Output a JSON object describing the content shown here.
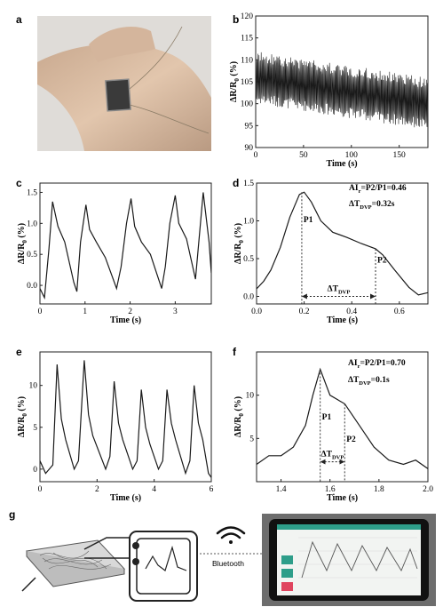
{
  "panels": {
    "a": "a",
    "b": "b",
    "c": "c",
    "d": "d",
    "e": "e",
    "f": "f",
    "g": "g"
  },
  "annotations": {
    "d_ai": "AIr=P2/P1=0.46",
    "d_dt": "ΔTDVP=0.32s",
    "f_ai": "AIr=P2/P1=0.70",
    "f_dt": "ΔTDVP=0.1s",
    "p1": "P1",
    "p2": "P2",
    "dtvp": "ΔTDVP"
  },
  "schematic": {
    "bluetooth_label": "Bluetooth",
    "wifi_icon": "wifi-icon",
    "phone_buttons": [
      "#2e9e8a",
      "#2e9e8a",
      "#e0455f"
    ]
  },
  "chart_data": [
    {
      "id": "b",
      "type": "line",
      "xlabel": "Time (s)",
      "ylabel": "ΔR/R0 (%)",
      "xlim": [
        0,
        180
      ],
      "ylim": [
        90,
        120
      ],
      "xticks": [
        0,
        50,
        100,
        150
      ],
      "yticks": [
        90,
        95,
        100,
        105,
        110,
        115,
        120
      ],
      "series": [
        {
          "baseline_start": 106,
          "baseline_end": 100,
          "amplitude": 5,
          "period_s": 1.1
        }
      ]
    },
    {
      "id": "c",
      "type": "line",
      "xlabel": "Time (s)",
      "ylabel": "ΔR/R0 (%)",
      "xlim": [
        0,
        3.8
      ],
      "ylim": [
        -0.3,
        1.65
      ],
      "xticks": [
        0,
        1,
        2,
        3
      ],
      "yticks": [
        0.0,
        0.5,
        1.0,
        1.5
      ],
      "series": [
        {
          "x": [
            0.0,
            0.1,
            0.2,
            0.28,
            0.4,
            0.55,
            0.75,
            0.82,
            0.9,
            1.02,
            1.1,
            1.25,
            1.45,
            1.7,
            1.8,
            1.92,
            2.02,
            2.1,
            2.25,
            2.45,
            2.7,
            2.78,
            2.88,
            3.0,
            3.08,
            3.25,
            3.45,
            3.62,
            3.75,
            3.8
          ],
          "y": [
            -0.05,
            -0.2,
            0.6,
            1.35,
            0.95,
            0.7,
            0.05,
            -0.1,
            0.7,
            1.3,
            0.9,
            0.7,
            0.45,
            -0.05,
            0.3,
            1.0,
            1.4,
            0.95,
            0.7,
            0.5,
            -0.05,
            0.3,
            1.0,
            1.45,
            1.0,
            0.75,
            0.1,
            1.5,
            0.7,
            0.2
          ]
        }
      ]
    },
    {
      "id": "d",
      "type": "line",
      "xlabel": "Time (s)",
      "ylabel": "ΔR/R0 (%)",
      "xlim": [
        0,
        0.72
      ],
      "ylim": [
        -0.1,
        1.5
      ],
      "xticks": [
        0.0,
        0.2,
        0.4,
        0.6
      ],
      "yticks": [
        0.0,
        0.5,
        1.0,
        1.5
      ],
      "series": [
        {
          "x": [
            0,
            0.03,
            0.06,
            0.1,
            0.14,
            0.18,
            0.2,
            0.23,
            0.27,
            0.32,
            0.38,
            0.44,
            0.5,
            0.53,
            0.58,
            0.64,
            0.68,
            0.72
          ],
          "y": [
            0.1,
            0.2,
            0.35,
            0.65,
            1.05,
            1.35,
            1.38,
            1.25,
            1.0,
            0.85,
            0.78,
            0.7,
            0.63,
            0.55,
            0.35,
            0.12,
            0.02,
            0.05
          ]
        }
      ],
      "p1": [
        0.19,
        1.38
      ],
      "p2": [
        0.5,
        0.63
      ]
    },
    {
      "id": "e",
      "type": "line",
      "xlabel": "Time (s)",
      "ylabel": "ΔR/R0 (%)",
      "xlim": [
        0,
        6
      ],
      "ylim": [
        -1.5,
        14
      ],
      "xticks": [
        0,
        2,
        4,
        6
      ],
      "yticks": [
        0,
        5,
        10
      ],
      "series": [
        {
          "x": [
            0.0,
            0.2,
            0.45,
            0.6,
            0.75,
            0.9,
            1.2,
            1.35,
            1.55,
            1.7,
            1.85,
            2.3,
            2.45,
            2.6,
            2.75,
            2.9,
            3.25,
            3.4,
            3.55,
            3.7,
            3.85,
            4.15,
            4.3,
            4.45,
            4.6,
            4.75,
            5.1,
            5.25,
            5.4,
            5.55,
            5.7,
            5.9,
            6.0
          ],
          "y": [
            1.0,
            -0.5,
            0.5,
            12.5,
            6.0,
            3.5,
            0.0,
            1.0,
            13.0,
            6.5,
            4.0,
            0.0,
            1.5,
            10.5,
            5.5,
            3.5,
            0.0,
            1.0,
            9.5,
            5.0,
            3.0,
            0.0,
            1.0,
            9.5,
            5.5,
            3.5,
            -0.5,
            1.0,
            10.0,
            5.5,
            3.5,
            -0.5,
            -1.0
          ]
        }
      ]
    },
    {
      "id": "f",
      "type": "line",
      "xlabel": "Time (s)",
      "ylabel": "ΔR/R0 (%)",
      "xlim": [
        1.3,
        2.0
      ],
      "ylim": [
        0,
        15
      ],
      "xticks": [
        1.4,
        1.6,
        1.8,
        2.0
      ],
      "yticks": [
        5,
        10
      ],
      "series": [
        {
          "x": [
            1.3,
            1.35,
            1.4,
            1.45,
            1.5,
            1.53,
            1.56,
            1.6,
            1.66,
            1.72,
            1.78,
            1.84,
            1.9,
            1.95,
            2.0
          ],
          "y": [
            2.0,
            3.0,
            3.0,
            4.0,
            6.5,
            10.0,
            13.0,
            10.0,
            9.0,
            6.5,
            4.0,
            2.5,
            2.0,
            2.5,
            1.5
          ]
        }
      ],
      "p1": [
        1.56,
        13.0
      ],
      "p2": [
        1.66,
        9.0
      ]
    }
  ]
}
